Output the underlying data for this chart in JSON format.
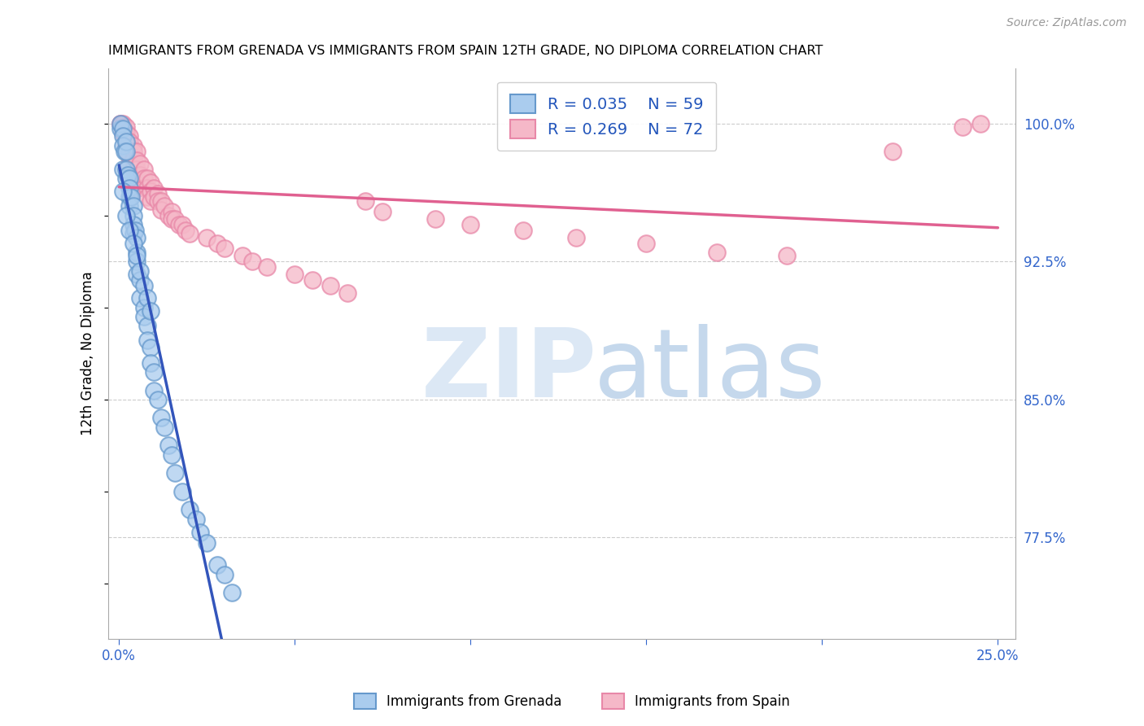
{
  "title": "IMMIGRANTS FROM GRENADA VS IMMIGRANTS FROM SPAIN 12TH GRADE, NO DIPLOMA CORRELATION CHART",
  "source": "Source: ZipAtlas.com",
  "ylabel": "12th Grade, No Diploma",
  "R_grenada": 0.035,
  "N_grenada": 59,
  "R_spain": 0.269,
  "N_spain": 72,
  "color_grenada_face": "#aaccee",
  "color_grenada_edge": "#6699cc",
  "color_spain_face": "#f5b8c8",
  "color_spain_edge": "#e888a8",
  "color_line_grenada_solid": "#3355bb",
  "color_line_spain": "#e06090",
  "color_line_dashed": "#99bbdd",
  "color_grid": "#cccccc",
  "color_ytick": "#3366cc",
  "color_xtick": "#3366cc",
  "xmin": 0.0,
  "xmax": 0.255,
  "ymin": 0.72,
  "ymax": 1.03,
  "yticks": [
    0.775,
    0.85,
    0.925,
    1.0
  ],
  "ytick_labels": [
    "77.5%",
    "85.0%",
    "92.5%",
    "100.0%"
  ],
  "xtick_vals": [
    0.0,
    0.05,
    0.1,
    0.15,
    0.2,
    0.25
  ],
  "xtick_labels": [
    "0.0%",
    "",
    "",
    "",
    "",
    "25.0%"
  ],
  "legend_label_grenada": "Immigrants from Grenada",
  "legend_label_spain": "Immigrants from Spain",
  "grenada_x": [
    0.0003,
    0.0005,
    0.001,
    0.001,
    0.001,
    0.001,
    0.0015,
    0.002,
    0.002,
    0.002,
    0.002,
    0.0025,
    0.003,
    0.003,
    0.003,
    0.003,
    0.0035,
    0.004,
    0.004,
    0.004,
    0.004,
    0.0045,
    0.005,
    0.005,
    0.005,
    0.005,
    0.006,
    0.006,
    0.007,
    0.007,
    0.008,
    0.008,
    0.009,
    0.009,
    0.01,
    0.01,
    0.011,
    0.012,
    0.013,
    0.014,
    0.015,
    0.016,
    0.018,
    0.02,
    0.022,
    0.023,
    0.025,
    0.028,
    0.03,
    0.032,
    0.001,
    0.002,
    0.003,
    0.004,
    0.005,
    0.006,
    0.007,
    0.008,
    0.009
  ],
  "grenada_y": [
    0.997,
    1.0,
    0.997,
    0.993,
    0.988,
    0.975,
    0.985,
    0.99,
    0.985,
    0.975,
    0.97,
    0.972,
    0.97,
    0.965,
    0.96,
    0.955,
    0.96,
    0.955,
    0.95,
    0.945,
    0.94,
    0.942,
    0.938,
    0.93,
    0.925,
    0.918,
    0.915,
    0.905,
    0.9,
    0.895,
    0.89,
    0.882,
    0.878,
    0.87,
    0.865,
    0.855,
    0.85,
    0.84,
    0.835,
    0.825,
    0.82,
    0.81,
    0.8,
    0.79,
    0.785,
    0.778,
    0.772,
    0.76,
    0.755,
    0.745,
    0.963,
    0.95,
    0.942,
    0.935,
    0.928,
    0.92,
    0.912,
    0.905,
    0.898
  ],
  "spain_x": [
    0.0003,
    0.0005,
    0.001,
    0.001,
    0.001,
    0.002,
    0.002,
    0.002,
    0.002,
    0.003,
    0.003,
    0.003,
    0.003,
    0.003,
    0.004,
    0.004,
    0.004,
    0.004,
    0.005,
    0.005,
    0.005,
    0.005,
    0.005,
    0.006,
    0.006,
    0.006,
    0.007,
    0.007,
    0.007,
    0.008,
    0.008,
    0.008,
    0.009,
    0.009,
    0.009,
    0.01,
    0.01,
    0.011,
    0.011,
    0.012,
    0.012,
    0.013,
    0.014,
    0.015,
    0.015,
    0.016,
    0.017,
    0.018,
    0.019,
    0.02,
    0.025,
    0.028,
    0.03,
    0.035,
    0.038,
    0.042,
    0.05,
    0.055,
    0.06,
    0.065,
    0.07,
    0.075,
    0.09,
    0.1,
    0.115,
    0.13,
    0.15,
    0.17,
    0.19,
    0.22,
    0.24,
    0.245
  ],
  "spain_y": [
    1.0,
    1.0,
    1.0,
    0.998,
    0.995,
    0.998,
    0.995,
    0.992,
    0.988,
    0.993,
    0.99,
    0.987,
    0.983,
    0.978,
    0.988,
    0.985,
    0.98,
    0.975,
    0.985,
    0.98,
    0.975,
    0.97,
    0.965,
    0.978,
    0.972,
    0.968,
    0.975,
    0.97,
    0.965,
    0.97,
    0.965,
    0.96,
    0.968,
    0.963,
    0.958,
    0.965,
    0.96,
    0.962,
    0.958,
    0.958,
    0.953,
    0.955,
    0.95,
    0.952,
    0.948,
    0.948,
    0.945,
    0.945,
    0.942,
    0.94,
    0.938,
    0.935,
    0.932,
    0.928,
    0.925,
    0.922,
    0.918,
    0.915,
    0.912,
    0.908,
    0.958,
    0.952,
    0.948,
    0.945,
    0.942,
    0.938,
    0.935,
    0.93,
    0.928,
    0.985,
    0.998,
    1.0
  ]
}
